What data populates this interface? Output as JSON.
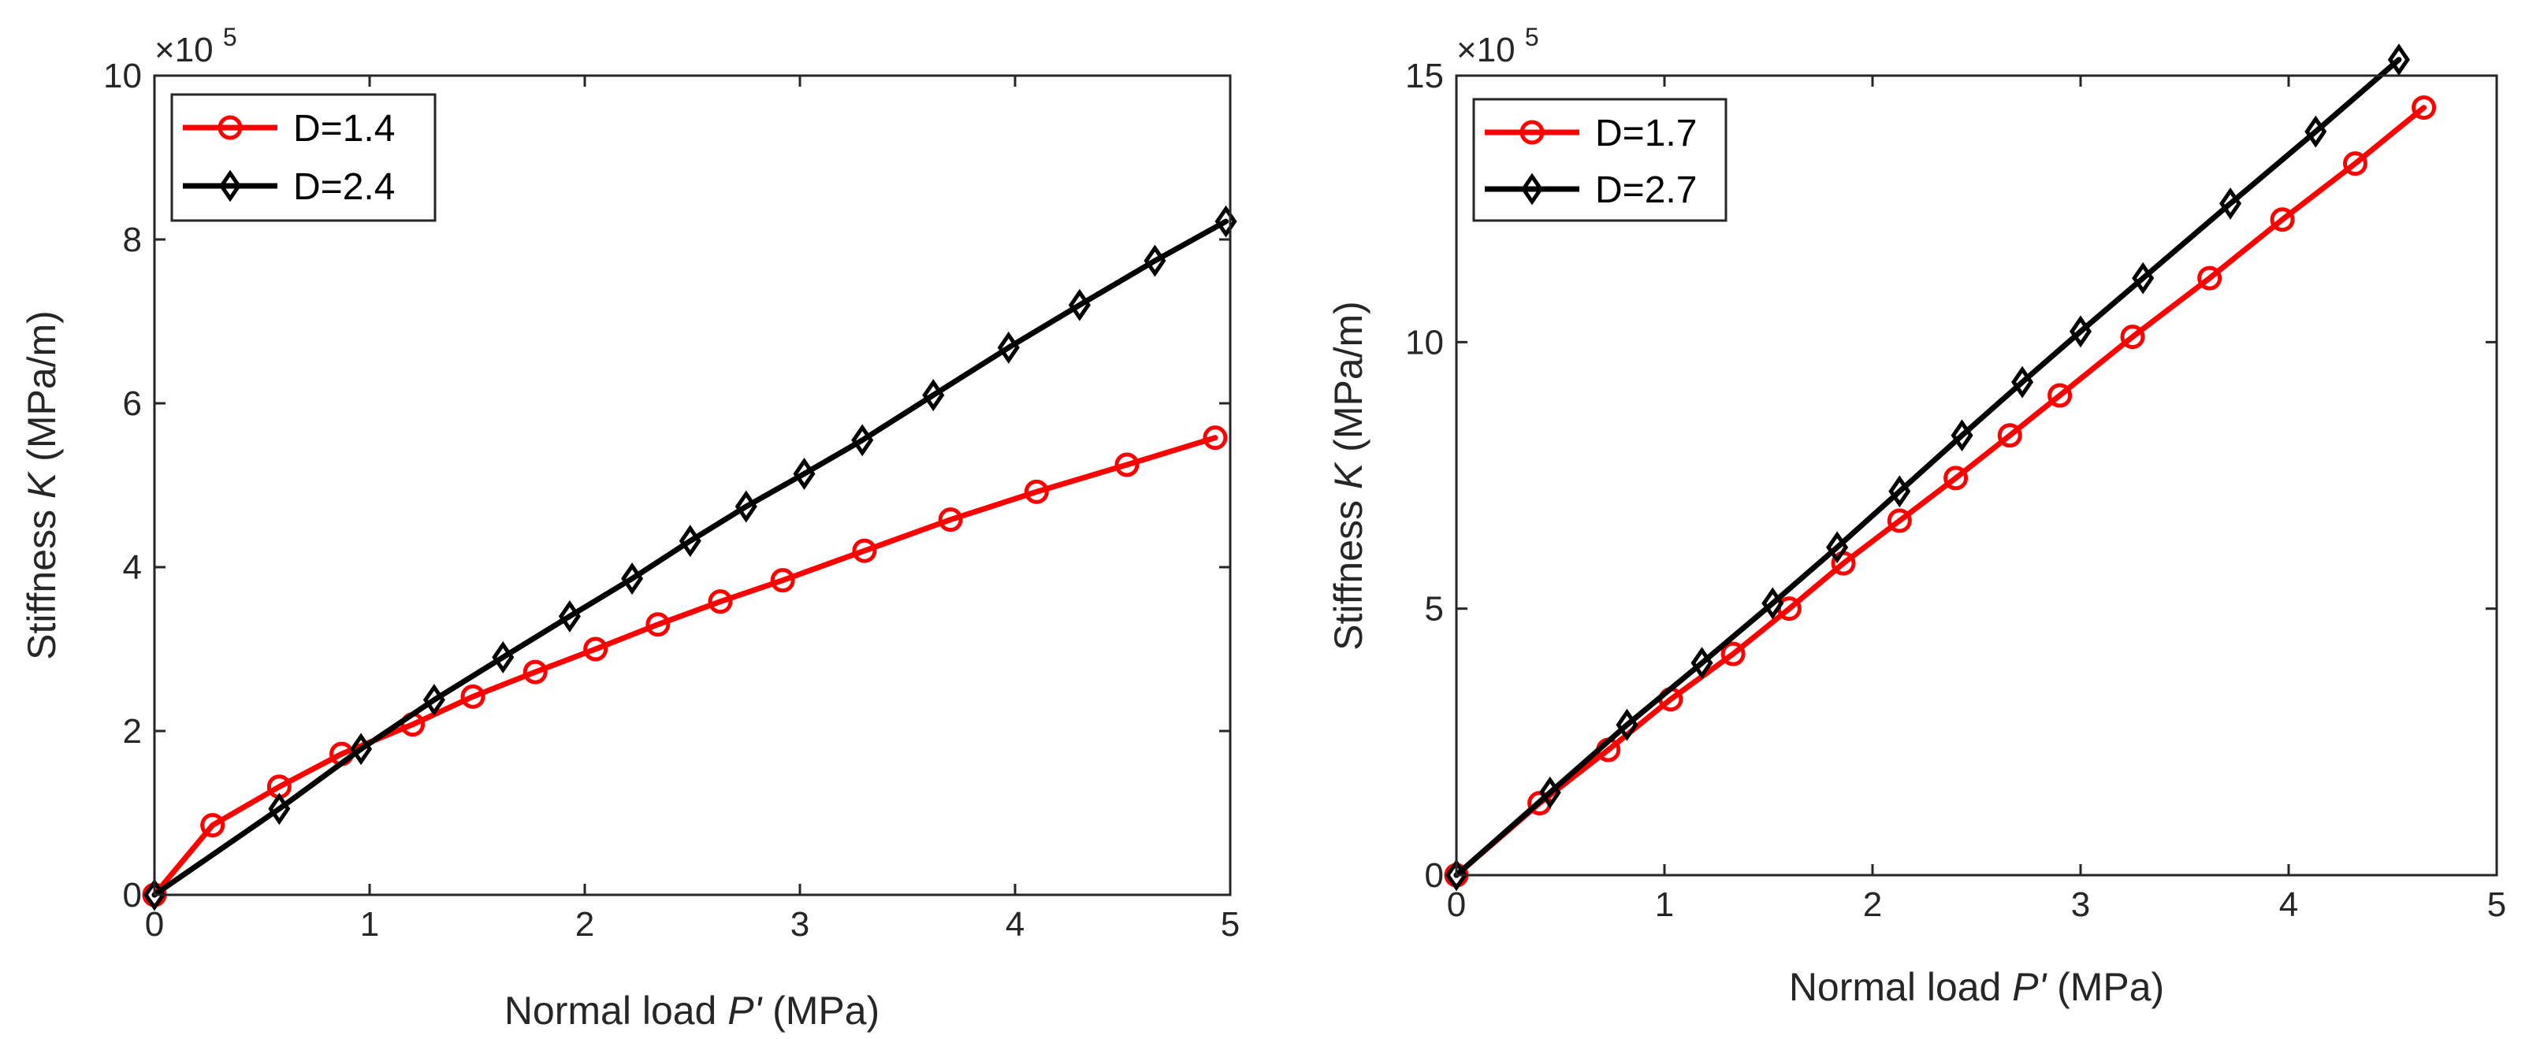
{
  "chart_data": [
    {
      "type": "line",
      "xlabel_prefix": "Normal load ",
      "xlabel_var": "P'",
      "xlabel_suffix": "(MPa)",
      "ylabel_prefix": "Stiffness ",
      "ylabel_var": "K",
      "ylabel_suffix": "(MPa/m)",
      "y_multiplier_base": "×10",
      "y_multiplier_exp": "5",
      "xlim": [
        0,
        5
      ],
      "ylim": [
        0,
        10
      ],
      "xticks": [
        0,
        1,
        2,
        3,
        4,
        5
      ],
      "yticks": [
        0,
        2,
        4,
        6,
        8,
        10
      ],
      "legend_position": "top-left",
      "series": [
        {
          "name": "D=1.4",
          "color": "#ff0000",
          "marker": "circle",
          "x": [
            0,
            0.27,
            0.58,
            0.87,
            1.2,
            1.48,
            1.77,
            2.05,
            2.34,
            2.63,
            2.92,
            3.3,
            3.7,
            4.1,
            4.52,
            4.93
          ],
          "y": [
            0,
            0.85,
            1.32,
            1.72,
            2.08,
            2.42,
            2.72,
            3.0,
            3.3,
            3.58,
            3.84,
            4.2,
            4.58,
            4.92,
            5.25,
            5.58
          ]
        },
        {
          "name": "D=2.4",
          "color": "#000000",
          "marker": "diamond",
          "x": [
            0,
            0.58,
            0.96,
            1.3,
            1.62,
            1.93,
            2.22,
            2.49,
            2.75,
            3.02,
            3.29,
            3.62,
            3.97,
            4.3,
            4.65,
            4.98
          ],
          "y": [
            0,
            1.05,
            1.78,
            2.38,
            2.9,
            3.4,
            3.86,
            4.32,
            4.74,
            5.14,
            5.55,
            6.1,
            6.68,
            7.2,
            7.74,
            8.22
          ]
        }
      ]
    },
    {
      "type": "line",
      "xlabel_prefix": "Normal load ",
      "xlabel_var": "P'",
      "xlabel_suffix": "(MPa)",
      "ylabel_prefix": "Stiffness ",
      "ylabel_var": "K",
      "ylabel_suffix": "(MPa/m)",
      "y_multiplier_base": "×10",
      "y_multiplier_exp": "5",
      "xlim": [
        0,
        5
      ],
      "ylim": [
        0,
        15
      ],
      "xticks": [
        0,
        1,
        2,
        3,
        4,
        5
      ],
      "yticks": [
        0,
        5,
        10,
        15
      ],
      "legend_position": "top-left",
      "series": [
        {
          "name": "D=1.7",
          "color": "#ff0000",
          "marker": "circle",
          "x": [
            0,
            0.4,
            0.73,
            1.03,
            1.33,
            1.6,
            1.86,
            2.13,
            2.4,
            2.66,
            2.9,
            3.25,
            3.62,
            3.97,
            4.32,
            4.65
          ],
          "y": [
            0,
            1.35,
            2.35,
            3.3,
            4.15,
            5.0,
            5.85,
            6.65,
            7.45,
            8.25,
            9.0,
            10.1,
            11.2,
            12.3,
            13.35,
            14.4
          ]
        },
        {
          "name": "D=2.7",
          "color": "#000000",
          "marker": "diamond",
          "x": [
            0,
            0.45,
            0.82,
            1.18,
            1.52,
            1.83,
            2.13,
            2.43,
            2.72,
            3.0,
            3.3,
            3.72,
            4.13,
            4.53
          ],
          "y": [
            0,
            1.55,
            2.82,
            3.98,
            5.1,
            6.15,
            7.2,
            8.25,
            9.25,
            10.2,
            11.2,
            12.6,
            13.95,
            15.3
          ]
        }
      ]
    }
  ]
}
